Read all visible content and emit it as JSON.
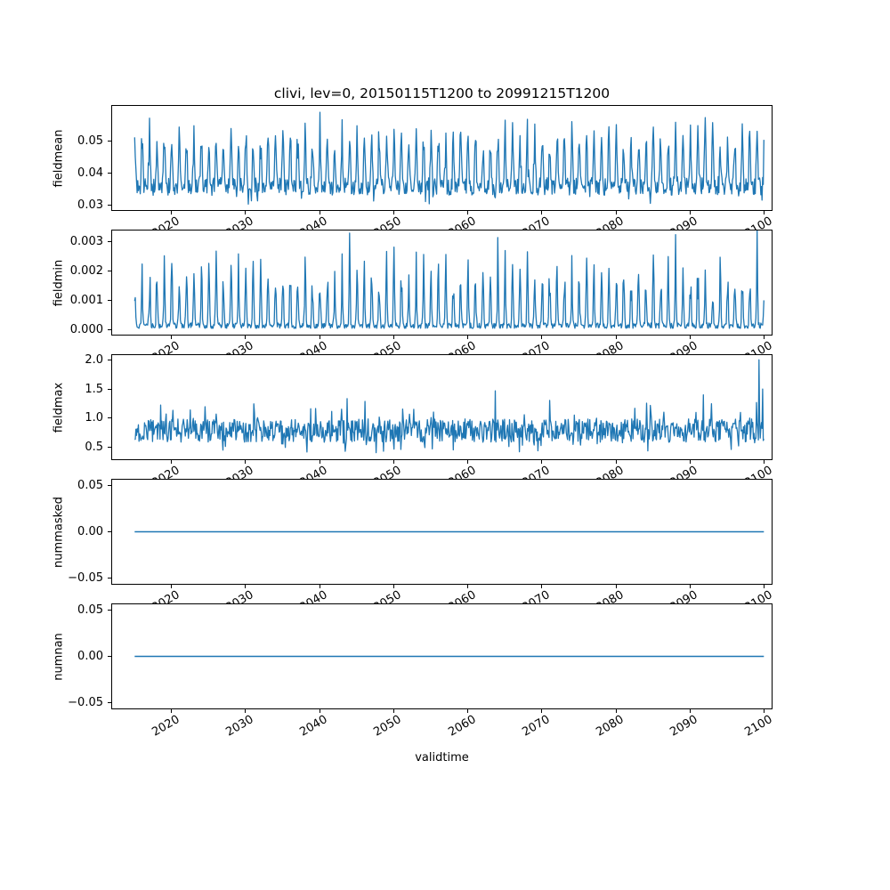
{
  "figure": {
    "title": "clivi, lev=0, 20150115T1200 to 20991215T1200",
    "xlabel": "validtime",
    "line_color": "#1f77b4",
    "background": "#ffffff",
    "text_color": "#000000"
  },
  "chart_data": [
    {
      "type": "line",
      "name": "fieldmean",
      "ylabel": "fieldmean",
      "xlim": [
        2012,
        2101
      ],
      "ylim": [
        0.0284,
        0.0612
      ],
      "yticks": [
        0.03,
        0.04,
        0.05
      ],
      "ytick_labels": [
        "0.03",
        "0.04",
        "0.05"
      ],
      "xticks": [
        2020,
        2030,
        2040,
        2050,
        2060,
        2070,
        2080,
        2090,
        2100
      ],
      "xtick_labels": [
        "2020",
        "2030",
        "2040",
        "2050",
        "2060",
        "2070",
        "2080",
        "2090",
        "2100"
      ],
      "x_start": 2015.0417,
      "x_end": 2099.9583,
      "summary": "Monthly fieldmean of clivi, 2015-2099: baseline ~0.036 with an annual seasonal spike reaching 0.05-0.059 each year and occasional dips to ~0.030; tallest peak ~0.059 near 2040.",
      "generator": {
        "kind": "annual_spikes",
        "seed": 42,
        "year_start": 2015,
        "year_end": 2099,
        "base": 0.0358,
        "noise": 0.0028,
        "spike": 0.02,
        "amp_min": 0.5,
        "amp_var": 0.55,
        "exp": 5,
        "peak_month": 0,
        "dip_prob": 0.06,
        "dip_amp": 0.003,
        "floor": 0.0292
      },
      "spikes": [
        {
          "t": 2040.0417,
          "v": 0.0592
        },
        {
          "t": 2092.0417,
          "v": 0.0575
        }
      ]
    },
    {
      "type": "line",
      "name": "fieldmin",
      "ylabel": "fieldmin",
      "xlim": [
        2012,
        2101
      ],
      "ylim": [
        -0.00018,
        0.00339
      ],
      "yticks": [
        0.0,
        0.001,
        0.002,
        0.003
      ],
      "ytick_labels": [
        "0.000",
        "0.001",
        "0.002",
        "0.003"
      ],
      "xticks": [
        2020,
        2030,
        2040,
        2050,
        2060,
        2070,
        2080,
        2090,
        2100
      ],
      "xtick_labels": [
        "2020",
        "2030",
        "2040",
        "2050",
        "2060",
        "2070",
        "2080",
        "2090",
        "2100"
      ],
      "x_start": 2015.0417,
      "x_end": 2099.9583,
      "summary": "Monthly fieldmin of clivi, 2015-2099: baseline near 0.0001 with narrow annual spikes mostly 0.001-0.0028; a few peaks reach ~0.0032-0.0034 (near 2044, 2064, 2088 and 2099).",
      "generator": {
        "kind": "annual_spikes",
        "seed": 7,
        "year_start": 2015,
        "year_end": 2099,
        "base": 0.00012,
        "noise": 0.0001,
        "spike": 0.0024,
        "amp_min": 0.35,
        "amp_var": 0.75,
        "exp": 7,
        "peak_month": 0,
        "dip_prob": 0,
        "dip_amp": 0,
        "floor": 4e-05
      },
      "spikes": [
        {
          "t": 2044.0417,
          "v": 0.0033
        },
        {
          "t": 2064.0417,
          "v": 0.00315
        },
        {
          "t": 2088.0417,
          "v": 0.00325
        },
        {
          "t": 2099.0417,
          "v": 0.0034
        }
      ]
    },
    {
      "type": "line",
      "name": "fieldmax",
      "ylabel": "fieldmax",
      "xlim": [
        2012,
        2101
      ],
      "ylim": [
        0.3,
        2.08
      ],
      "yticks": [
        0.5,
        1.0,
        1.5,
        2.0
      ],
      "ytick_labels": [
        "0.5",
        "1.0",
        "1.5",
        "2.0"
      ],
      "xticks": [
        2020,
        2030,
        2040,
        2050,
        2060,
        2070,
        2080,
        2090,
        2100
      ],
      "xtick_labels": [
        "2020",
        "2030",
        "2040",
        "2050",
        "2060",
        "2070",
        "2080",
        "2090",
        "2100"
      ],
      "x_start": 2015.0417,
      "x_end": 2099.9583,
      "summary": "Monthly fieldmax of clivi, 2015-2099: noisy series around ~0.8 (roughly 0.45-1.3) with isolated spikes ~1.45 near 2064 and ~1.4 near 2092, and a maximum of ~2.0 followed by ~1.5 at the very end (2099).",
      "generator": {
        "kind": "noisy",
        "seed": 13,
        "year_start": 2015,
        "year_end": 2099,
        "base": 0.79,
        "noise": 0.2,
        "burst_prob": 0.06,
        "burst_amp": 0.4,
        "dip_prob": 0.05,
        "dip_amp": 0.18,
        "floor": 0.38
      },
      "spikes": [
        {
          "t": 2063.7083,
          "v": 1.47
        },
        {
          "t": 2091.7917,
          "v": 1.4
        },
        {
          "t": 2099.2917,
          "v": 2.0
        },
        {
          "t": 2099.7917,
          "v": 1.5
        }
      ]
    },
    {
      "type": "line",
      "name": "nummasked",
      "ylabel": "nummasked",
      "xlim": [
        2012,
        2101
      ],
      "ylim": [
        -0.0562,
        0.0562
      ],
      "yticks": [
        -0.05,
        0.0,
        0.05
      ],
      "ytick_labels": [
        "−0.05",
        "0.00",
        "0.05"
      ],
      "xticks": [
        2020,
        2030,
        2040,
        2050,
        2060,
        2070,
        2080,
        2090,
        2100
      ],
      "xtick_labels": [
        "2020",
        "2030",
        "2040",
        "2050",
        "2060",
        "2070",
        "2080",
        "2090",
        "2100"
      ],
      "x_start": 2015.0417,
      "x_end": 2099.9583,
      "summary": "nummasked is constant 0.00 for the whole period 2015-2099 (flat horizontal line).",
      "generator": {
        "kind": "constant",
        "value": 0
      },
      "spikes": []
    },
    {
      "type": "line",
      "name": "numnan",
      "ylabel": "numnan",
      "xlim": [
        2012,
        2101
      ],
      "ylim": [
        -0.0562,
        0.0562
      ],
      "yticks": [
        -0.05,
        0.0,
        0.05
      ],
      "ytick_labels": [
        "−0.05",
        "0.00",
        "0.05"
      ],
      "xticks": [
        2020,
        2030,
        2040,
        2050,
        2060,
        2070,
        2080,
        2090,
        2100
      ],
      "xtick_labels": [
        "2020",
        "2030",
        "2040",
        "2050",
        "2060",
        "2070",
        "2080",
        "2090",
        "2100"
      ],
      "x_start": 2015.0417,
      "x_end": 2099.9583,
      "summary": "numnan is constant 0.00 for the whole period 2015-2099 (flat horizontal line).",
      "generator": {
        "kind": "constant",
        "value": 0
      },
      "spikes": []
    }
  ]
}
